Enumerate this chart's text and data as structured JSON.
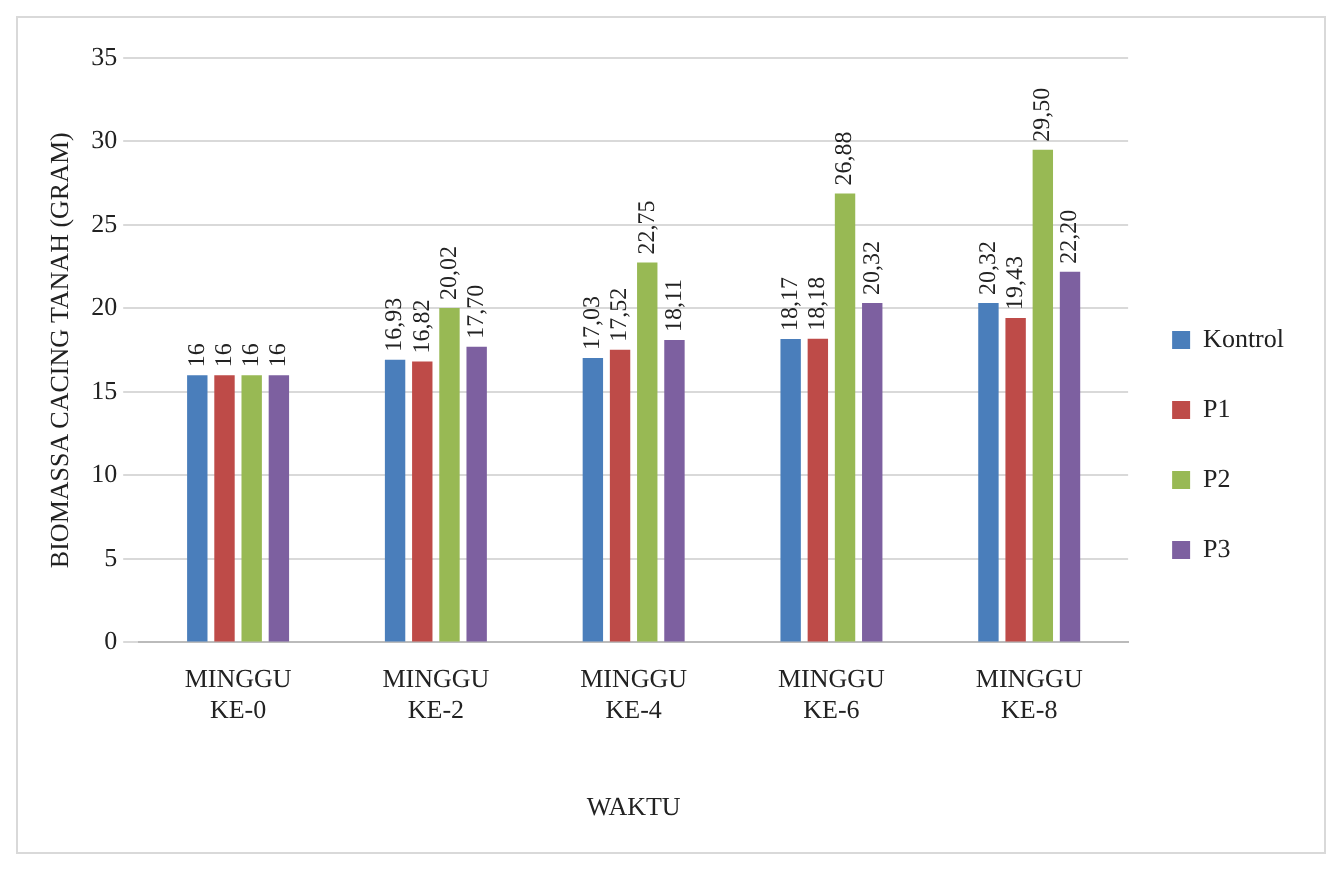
{
  "chart_data": {
    "type": "bar",
    "xlabel": "WAKTU",
    "ylabel": "BIOMASSA CACING TANAH (GRAM)",
    "categories": [
      "MINGGU KE-0",
      "MINGGU KE-2",
      "MINGGU KE-4",
      "MINGGU KE-6",
      "MINGGU KE-8"
    ],
    "series": [
      {
        "name": "Kontrol",
        "color": "#4a7ebb",
        "values": [
          16,
          16.93,
          17.03,
          18.17,
          20.32
        ],
        "value_labels": [
          "16",
          "16,93",
          "17,03",
          "18,17",
          "20,32"
        ]
      },
      {
        "name": "P1",
        "color": "#be4b48",
        "values": [
          16,
          16.82,
          17.52,
          18.18,
          19.43
        ],
        "value_labels": [
          "16",
          "16,82",
          "17,52",
          "18,18",
          "19,43"
        ]
      },
      {
        "name": "P2",
        "color": "#98b954",
        "values": [
          16,
          20.02,
          22.75,
          26.88,
          29.5
        ],
        "value_labels": [
          "16",
          "20,02",
          "22,75",
          "26,88",
          "29,50"
        ]
      },
      {
        "name": "P3",
        "color": "#7d60a0",
        "values": [
          16,
          17.7,
          18.11,
          20.32,
          22.2
        ],
        "value_labels": [
          "16",
          "17,70",
          "18,11",
          "20,32",
          "22,20"
        ]
      }
    ],
    "ylim": [
      0,
      35
    ],
    "yticks": [
      0,
      5,
      10,
      15,
      20,
      25,
      30,
      35
    ],
    "grid": "y",
    "legend": "right"
  }
}
